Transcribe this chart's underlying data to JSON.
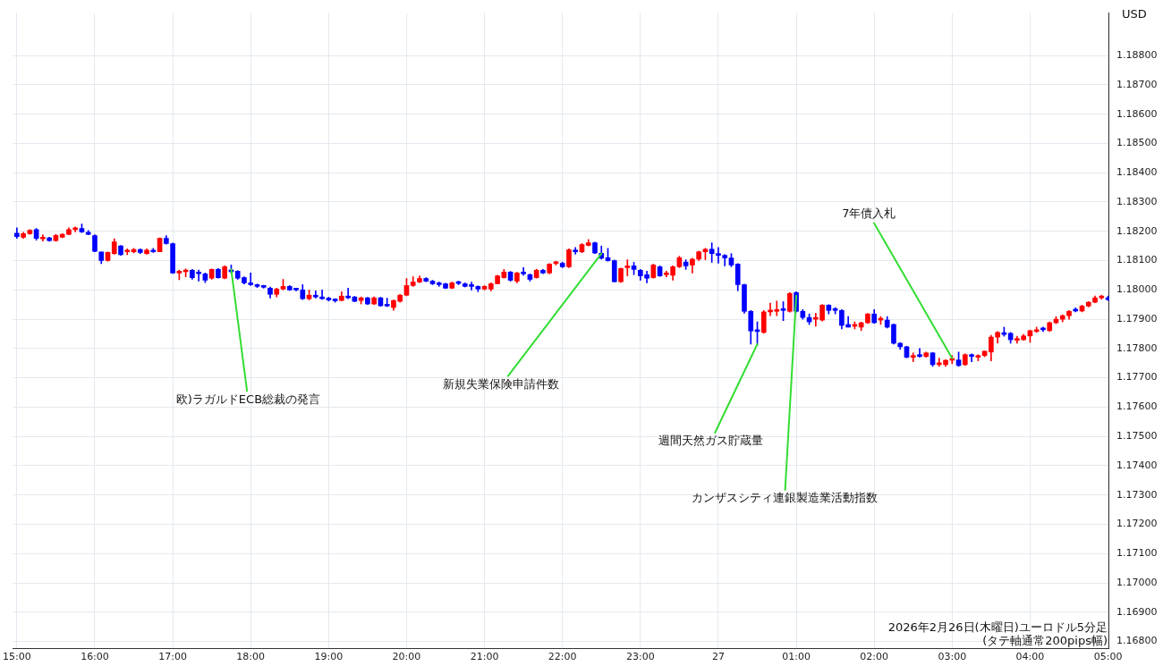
{
  "chart_data": {
    "type": "candlestick",
    "ylabel": "USD",
    "annotations": [
      {
        "text": "欧)ラガルドECB総裁の発言",
        "x": "2026-02-26T17:45",
        "y": 1.1807
      },
      {
        "text": "新規失業保険申請件数",
        "x": "2026-02-26T22:30",
        "y": 1.18124
      },
      {
        "text": "週間天然ガス貯蔵量",
        "x": "2026-02-27T00:30",
        "y": 1.17815
      },
      {
        "text": "カンザスシティ連銀製造業活動指数",
        "x": "2026-02-27T01:00",
        "y": 1.1798
      },
      {
        "text": "7年債入札",
        "x": "2026-02-27T03:00",
        "y": 1.17767
      },
      "2026年2月26日(木曜日)ユーロドル5分足",
      "(タテ軸通常200pips幅)"
    ],
    "x": [
      "2026-02-26T15:00",
      "2026-02-26T15:05",
      "2026-02-26T15:10",
      "2026-02-26T15:15",
      "2026-02-26T15:20",
      "2026-02-26T15:25",
      "2026-02-26T15:30",
      "2026-02-26T15:35",
      "2026-02-26T15:40",
      "2026-02-26T15:45",
      "2026-02-26T15:50",
      "2026-02-26T15:55",
      "2026-02-26T16:00",
      "2026-02-26T16:05",
      "2026-02-26T16:10",
      "2026-02-26T16:15",
      "2026-02-26T16:20",
      "2026-02-26T16:25",
      "2026-02-26T16:30",
      "2026-02-26T16:35",
      "2026-02-26T16:40",
      "2026-02-26T16:45",
      "2026-02-26T16:50",
      "2026-02-26T16:55",
      "2026-02-26T17:00",
      "2026-02-26T17:05",
      "2026-02-26T17:10",
      "2026-02-26T17:15",
      "2026-02-26T17:20",
      "2026-02-26T17:25",
      "2026-02-26T17:30",
      "2026-02-26T17:35",
      "2026-02-26T17:40",
      "2026-02-26T17:45",
      "2026-02-26T17:50",
      "2026-02-26T17:55",
      "2026-02-26T18:00",
      "2026-02-26T18:05",
      "2026-02-26T18:10",
      "2026-02-26T18:15",
      "2026-02-26T18:20",
      "2026-02-26T18:25",
      "2026-02-26T18:30",
      "2026-02-26T18:35",
      "2026-02-26T18:40",
      "2026-02-26T18:45",
      "2026-02-26T18:50",
      "2026-02-26T18:55",
      "2026-02-26T19:00",
      "2026-02-26T19:05",
      "2026-02-26T19:10",
      "2026-02-26T19:15",
      "2026-02-26T19:20",
      "2026-02-26T19:25",
      "2026-02-26T19:30",
      "2026-02-26T19:35",
      "2026-02-26T19:40",
      "2026-02-26T19:45",
      "2026-02-26T19:50",
      "2026-02-26T19:55",
      "2026-02-26T20:00",
      "2026-02-26T20:05",
      "2026-02-26T20:10",
      "2026-02-26T20:15",
      "2026-02-26T20:20",
      "2026-02-26T20:25",
      "2026-02-26T20:30",
      "2026-02-26T20:35",
      "2026-02-26T20:40",
      "2026-02-26T20:45",
      "2026-02-26T20:50",
      "2026-02-26T20:55",
      "2026-02-26T21:00",
      "2026-02-26T21:05",
      "2026-02-26T21:10",
      "2026-02-26T21:15",
      "2026-02-26T21:20",
      "2026-02-26T21:25",
      "2026-02-26T21:30",
      "2026-02-26T21:35",
      "2026-02-26T21:40",
      "2026-02-26T21:45",
      "2026-02-26T21:50",
      "2026-02-26T21:55",
      "2026-02-26T22:00",
      "2026-02-26T22:05",
      "2026-02-26T22:10",
      "2026-02-26T22:15",
      "2026-02-26T22:20",
      "2026-02-26T22:25",
      "2026-02-26T22:30",
      "2026-02-26T22:35",
      "2026-02-26T22:40",
      "2026-02-26T22:45",
      "2026-02-26T22:50",
      "2026-02-26T22:55",
      "2026-02-26T23:00",
      "2026-02-26T23:05",
      "2026-02-26T23:10",
      "2026-02-26T23:15",
      "2026-02-26T23:20",
      "2026-02-26T23:25",
      "2026-02-26T23:30",
      "2026-02-26T23:35",
      "2026-02-26T23:40",
      "2026-02-26T23:45",
      "2026-02-26T23:50",
      "2026-02-26T23:55",
      "2026-02-27T00:00",
      "2026-02-27T00:05",
      "2026-02-27T00:10",
      "2026-02-27T00:15",
      "2026-02-27T00:20",
      "2026-02-27T00:25",
      "2026-02-27T00:30",
      "2026-02-27T00:35",
      "2026-02-27T00:40",
      "2026-02-27T00:45",
      "2026-02-27T00:50",
      "2026-02-27T00:55",
      "2026-02-27T01:00",
      "2026-02-27T01:05",
      "2026-02-27T01:10",
      "2026-02-27T01:15",
      "2026-02-27T01:20",
      "2026-02-27T01:25",
      "2026-02-27T01:30",
      "2026-02-27T01:35",
      "2026-02-27T01:40",
      "2026-02-27T01:45",
      "2026-02-27T01:50",
      "2026-02-27T01:55",
      "2026-02-27T02:00",
      "2026-02-27T02:05",
      "2026-02-27T02:10",
      "2026-02-27T02:15",
      "2026-02-27T02:20",
      "2026-02-27T02:25",
      "2026-02-27T02:30",
      "2026-02-27T02:35",
      "2026-02-27T02:40",
      "2026-02-27T02:45",
      "2026-02-27T02:50",
      "2026-02-27T02:55",
      "2026-02-27T03:00",
      "2026-02-27T03:05",
      "2026-02-27T03:10",
      "2026-02-27T03:15",
      "2026-02-27T03:20",
      "2026-02-27T03:25",
      "2026-02-27T03:30",
      "2026-02-27T03:35",
      "2026-02-27T03:40",
      "2026-02-27T03:45",
      "2026-02-27T03:50",
      "2026-02-27T03:55",
      "2026-02-27T04:00",
      "2026-02-27T04:05",
      "2026-02-27T04:10",
      "2026-02-27T04:15",
      "2026-02-27T04:20",
      "2026-02-27T04:25",
      "2026-02-27T04:30",
      "2026-02-27T04:35",
      "2026-02-27T04:40",
      "2026-02-27T04:45",
      "2026-02-27T04:50",
      "2026-02-27T04:55",
      "2026-02-27T05:00"
    ],
    "ohlc": [
      [
        1.18194,
        1.18212,
        1.18176,
        1.18182
      ],
      [
        1.1818,
        1.18197,
        1.18176,
        1.18192
      ],
      [
        1.18192,
        1.18206,
        1.1819,
        1.18204
      ],
      [
        1.18206,
        1.1821,
        1.1817,
        1.18176
      ],
      [
        1.18174,
        1.18188,
        1.18167,
        1.18178
      ],
      [
        1.18178,
        1.1818,
        1.18166,
        1.18168
      ],
      [
        1.18168,
        1.1819,
        1.18166,
        1.18186
      ],
      [
        1.1818,
        1.18192,
        1.18178,
        1.1819
      ],
      [
        1.1819,
        1.18212,
        1.18188,
        1.18206
      ],
      [
        1.18206,
        1.18215,
        1.18198,
        1.18208
      ],
      [
        1.1821,
        1.18225,
        1.18196,
        1.18198
      ],
      [
        1.18197,
        1.18203,
        1.18188,
        1.1819
      ],
      [
        1.18185,
        1.18188,
        1.1813,
        1.18132
      ],
      [
        1.1813,
        1.1813,
        1.1809,
        1.181
      ],
      [
        1.181,
        1.1813,
        1.18098,
        1.18128
      ],
      [
        1.18124,
        1.18175,
        1.18122,
        1.18164
      ],
      [
        1.1815,
        1.18152,
        1.18118,
        1.1812
      ],
      [
        1.1813,
        1.1814,
        1.1812,
        1.18136
      ],
      [
        1.1813,
        1.18142,
        1.18126,
        1.18138
      ],
      [
        1.18138,
        1.1814,
        1.18124,
        1.18128
      ],
      [
        1.18124,
        1.1814,
        1.18122,
        1.18136
      ],
      [
        1.18136,
        1.18142,
        1.18128,
        1.1813
      ],
      [
        1.1813,
        1.18178,
        1.1813,
        1.18176
      ],
      [
        1.18176,
        1.18185,
        1.18156,
        1.18158
      ],
      [
        1.18158,
        1.1816,
        1.18056,
        1.18058
      ],
      [
        1.18058,
        1.18068,
        1.18035,
        1.18064
      ],
      [
        1.18062,
        1.18072,
        1.18045,
        1.18066
      ],
      [
        1.18067,
        1.1807,
        1.18036,
        1.18042
      ],
      [
        1.18058,
        1.18068,
        1.1803,
        1.18055
      ],
      [
        1.18055,
        1.18058,
        1.18025,
        1.18033
      ],
      [
        1.1804,
        1.18072,
        1.18036,
        1.1807
      ],
      [
        1.1807,
        1.18073,
        1.1804,
        1.18042
      ],
      [
        1.1804,
        1.18082,
        1.18038,
        1.18079
      ],
      [
        1.18066,
        1.18085,
        1.18058,
        1.18062
      ],
      [
        1.18064,
        1.18066,
        1.18036,
        1.1804
      ],
      [
        1.18042,
        1.18045,
        1.1802,
        1.18024
      ],
      [
        1.18024,
        1.18058,
        1.18015,
        1.18018
      ],
      [
        1.18014,
        1.1802,
        1.18008,
        1.18012
      ],
      [
        1.18012,
        1.18016,
        1.18006,
        1.18009
      ],
      [
        1.18006,
        1.1801,
        1.17972,
        1.17985
      ],
      [
        1.17985,
        1.18006,
        1.17976,
        1.18003
      ],
      [
        1.18003,
        1.18036,
        1.18,
        1.18012
      ],
      [
        1.18012,
        1.18015,
        1.17998,
        1.18
      ],
      [
        1.18003,
        1.18003,
        1.17997,
        1.18
      ],
      [
        1.18,
        1.18018,
        1.17967,
        1.1797
      ],
      [
        1.1797,
        1.18,
        1.17966,
        1.17982
      ],
      [
        1.1798,
        1.17997,
        1.17972,
        1.17976
      ],
      [
        1.17976,
        1.18,
        1.17968,
        1.1797
      ],
      [
        1.17968,
        1.17975,
        1.17962,
        1.17966
      ],
      [
        1.17965,
        1.1797,
        1.17958,
        1.17963
      ],
      [
        1.17964,
        1.17994,
        1.17962,
        1.17979
      ],
      [
        1.17979,
        1.18006,
        1.1797,
        1.17973
      ],
      [
        1.17976,
        1.17978,
        1.1796,
        1.17961
      ],
      [
        1.17964,
        1.17976,
        1.17952,
        1.17973
      ],
      [
        1.17973,
        1.17975,
        1.1795,
        1.17952
      ],
      [
        1.17952,
        1.17976,
        1.1795,
        1.17973
      ],
      [
        1.17973,
        1.17975,
        1.17944,
        1.17946
      ],
      [
        1.17946,
        1.17972,
        1.17943,
        1.17945
      ],
      [
        1.1794,
        1.17966,
        1.1793,
        1.17964
      ],
      [
        1.17961,
        1.17985,
        1.17958,
        1.17982
      ],
      [
        1.17982,
        1.18039,
        1.1798,
        1.18015
      ],
      [
        1.18015,
        1.18045,
        1.18012,
        1.18027
      ],
      [
        1.18027,
        1.18048,
        1.18025,
        1.18039
      ],
      [
        1.18039,
        1.18042,
        1.18028,
        1.1803
      ],
      [
        1.1803,
        1.18033,
        1.18018,
        1.18021
      ],
      [
        1.18021,
        1.18027,
        1.18012,
        1.18018
      ],
      [
        1.18021,
        1.18023,
        1.18004,
        1.18006
      ],
      [
        1.18006,
        1.18027,
        1.18004,
        1.18024
      ],
      [
        1.18025,
        1.1803,
        1.18018,
        1.18022
      ],
      [
        1.18021,
        1.18024,
        1.1801,
        1.18012
      ],
      [
        1.18014,
        1.18027,
        1.18,
        1.18012
      ],
      [
        1.18012,
        1.18014,
        1.17994,
        1.18003
      ],
      [
        1.18003,
        1.18015,
        1.18,
        1.18012
      ],
      [
        1.18003,
        1.18024,
        1.17997,
        1.18021
      ],
      [
        1.18021,
        1.1805,
        1.1802,
        1.18048
      ],
      [
        1.18042,
        1.1807,
        1.1804,
        1.18061
      ],
      [
        1.18061,
        1.18063,
        1.1803,
        1.18033
      ],
      [
        1.1803,
        1.1806,
        1.18024,
        1.18058
      ],
      [
        1.18058,
        1.18076,
        1.1805,
        1.18055
      ],
      [
        1.18052,
        1.18055,
        1.1803,
        1.18036
      ],
      [
        1.18042,
        1.18071,
        1.1804,
        1.18067
      ],
      [
        1.18067,
        1.1807,
        1.18055,
        1.18058
      ],
      [
        1.18058,
        1.1809,
        1.18055,
        1.18088
      ],
      [
        1.1809,
        1.18098,
        1.18085,
        1.18094
      ],
      [
        1.18091,
        1.18095,
        1.18076,
        1.18079
      ],
      [
        1.18079,
        1.1814,
        1.18076,
        1.18137
      ],
      [
        1.18136,
        1.18145,
        1.18122,
        1.1813
      ],
      [
        1.1813,
        1.18158,
        1.18127,
        1.18155
      ],
      [
        1.18152,
        1.18172,
        1.1815,
        1.18161
      ],
      [
        1.18161,
        1.18163,
        1.18124,
        1.18126
      ],
      [
        1.18125,
        1.1815,
        1.18105,
        1.18108
      ],
      [
        1.1811,
        1.18142,
        1.18098,
        1.181
      ],
      [
        1.181,
        1.18102,
        1.18027,
        1.18028
      ],
      [
        1.18028,
        1.18075,
        1.18026,
        1.18073
      ],
      [
        1.18076,
        1.18103,
        1.18048,
        1.18082
      ],
      [
        1.18082,
        1.18094,
        1.18052,
        1.1807
      ],
      [
        1.18067,
        1.1807,
        1.18033,
        1.18048
      ],
      [
        1.18052,
        1.18064,
        1.18024,
        1.1804
      ],
      [
        1.18042,
        1.18088,
        1.1804,
        1.18085
      ],
      [
        1.18079,
        1.18082,
        1.18046,
        1.18048
      ],
      [
        1.18052,
        1.18064,
        1.18045,
        1.18057
      ],
      [
        1.1805,
        1.18082,
        1.18033,
        1.18079
      ],
      [
        1.18079,
        1.18115,
        1.18076,
        1.1811
      ],
      [
        1.18095,
        1.18103,
        1.1807,
        1.18082
      ],
      [
        1.18085,
        1.18108,
        1.18058,
        1.18105
      ],
      [
        1.18105,
        1.18133,
        1.181,
        1.1813
      ],
      [
        1.1813,
        1.18142,
        1.18103,
        1.18139
      ],
      [
        1.18139,
        1.18161,
        1.18094,
        1.18124
      ],
      [
        1.18124,
        1.18145,
        1.18091,
        1.18118
      ],
      [
        1.18118,
        1.18121,
        1.18082,
        1.18109
      ],
      [
        1.18109,
        1.18124,
        1.18079,
        1.18085
      ],
      [
        1.18088,
        1.1809,
        1.17997,
        1.18018
      ],
      [
        1.18018,
        1.1802,
        1.1792,
        1.17927
      ],
      [
        1.17927,
        1.1793,
        1.17815,
        1.1786
      ],
      [
        1.17862,
        1.17891,
        1.17812,
        1.17858
      ],
      [
        1.17855,
        1.1793,
        1.17852,
        1.17925
      ],
      [
        1.17925,
        1.17955,
        1.17912,
        1.1793
      ],
      [
        1.17927,
        1.17962,
        1.17912,
        1.17933
      ],
      [
        1.17933,
        1.1796,
        1.17895,
        1.1793
      ],
      [
        1.17927,
        1.17991,
        1.17924,
        1.17988
      ],
      [
        1.17991,
        1.17994,
        1.17924,
        1.17927
      ],
      [
        1.17927,
        1.17933,
        1.179,
        1.17906
      ],
      [
        1.17906,
        1.17918,
        1.17882,
        1.17891
      ],
      [
        1.179,
        1.17921,
        1.17876,
        1.17906
      ],
      [
        1.17897,
        1.1795,
        1.17894,
        1.17948
      ],
      [
        1.17948,
        1.1795,
        1.17918,
        1.1793
      ],
      [
        1.17933,
        1.1794,
        1.17918,
        1.1793
      ],
      [
        1.1793,
        1.17933,
        1.17867,
        1.17879
      ],
      [
        1.17882,
        1.17909,
        1.17873,
        1.17873
      ],
      [
        1.17876,
        1.17891,
        1.17867,
        1.17881
      ],
      [
        1.17873,
        1.1789,
        1.17861,
        1.17888
      ],
      [
        1.17888,
        1.1792,
        1.17885,
        1.17918
      ],
      [
        1.17918,
        1.17933,
        1.17886,
        1.17888
      ],
      [
        1.17897,
        1.17909,
        1.17882,
        1.17903
      ],
      [
        1.17897,
        1.17909,
        1.1787,
        1.17873
      ],
      [
        1.17882,
        1.17884,
        1.17815,
        1.17818
      ],
      [
        1.17818,
        1.1782,
        1.17797,
        1.17806
      ],
      [
        1.17806,
        1.17808,
        1.17768,
        1.1777
      ],
      [
        1.1777,
        1.17785,
        1.17755,
        1.17776
      ],
      [
        1.17776,
        1.178,
        1.1777,
        1.17773
      ],
      [
        1.17773,
        1.17788,
        1.1777,
        1.17785
      ],
      [
        1.17785,
        1.17787,
        1.17739,
        1.17745
      ],
      [
        1.17745,
        1.17767,
        1.17739,
        1.1775
      ],
      [
        1.17745,
        1.17762,
        1.17739,
        1.1776
      ],
      [
        1.1776,
        1.17776,
        1.17748,
        1.17764
      ],
      [
        1.17761,
        1.17788,
        1.17739,
        1.17742
      ],
      [
        1.17745,
        1.17782,
        1.17742,
        1.17779
      ],
      [
        1.17776,
        1.17782,
        1.17755,
        1.17773
      ],
      [
        1.1777,
        1.17779,
        1.17758,
        1.17773
      ],
      [
        1.17776,
        1.17791,
        1.17772,
        1.17791
      ],
      [
        1.17788,
        1.17845,
        1.17758,
        1.17839
      ],
      [
        1.17839,
        1.17858,
        1.17818,
        1.17855
      ],
      [
        1.1785,
        1.17873,
        1.17842,
        1.17848
      ],
      [
        1.17852,
        1.17855,
        1.17818,
        1.1783
      ],
      [
        1.17828,
        1.17842,
        1.17818,
        1.17832
      ],
      [
        1.1783,
        1.17848,
        1.17828,
        1.17843
      ],
      [
        1.17843,
        1.17863,
        1.17821,
        1.17861
      ],
      [
        1.17858,
        1.17873,
        1.17855,
        1.17864
      ],
      [
        1.17866,
        1.17873,
        1.17858,
        1.17864
      ],
      [
        1.17861,
        1.17891,
        1.17858,
        1.17888
      ],
      [
        1.17888,
        1.17909,
        1.17885,
        1.179
      ],
      [
        1.179,
        1.17915,
        1.17891,
        1.17912
      ],
      [
        1.17912,
        1.1793,
        1.179,
        1.17927
      ],
      [
        1.17933,
        1.17939,
        1.17925,
        1.17928
      ],
      [
        1.17928,
        1.17948,
        1.17925,
        1.17945
      ],
      [
        1.17945,
        1.1796,
        1.17942,
        1.17958
      ],
      [
        1.17958,
        1.17979,
        1.17956,
        1.17973
      ],
      [
        1.17973,
        1.17982,
        1.17968,
        1.17976
      ],
      [
        1.17973,
        1.17979,
        1.17964,
        1.17967
      ]
    ],
    "colors": [
      "#0000ff",
      "#ff0000",
      "#ff0000",
      "#0000ff",
      "#ff0000",
      "#0000ff",
      "#ff0000",
      "#ff0000",
      "#ff0000",
      "#ff0000",
      "#0000ff",
      "#0000ff",
      "#0000ff",
      "#0000ff",
      "#ff0000",
      "#ff0000",
      "#0000ff",
      "#ff0000",
      "#ff0000",
      "#0000ff",
      "#ff0000",
      "#0000ff",
      "#ff0000",
      "#0000ff",
      "#0000ff",
      "#ff0000",
      "#ff0000",
      "#0000ff",
      "#0000ff",
      "#0000ff",
      "#ff0000",
      "#0000ff",
      "#ff0000",
      "#0000ff",
      "#0000ff",
      "#0000ff",
      "#0000ff",
      "#0000ff",
      "#0000ff",
      "#0000ff",
      "#ff0000",
      "#ff0000",
      "#0000ff",
      "#0000ff",
      "#0000ff",
      "#ff0000",
      "#0000ff",
      "#0000ff",
      "#0000ff",
      "#0000ff",
      "#ff0000",
      "#0000ff",
      "#0000ff",
      "#ff0000",
      "#0000ff",
      "#ff0000",
      "#0000ff",
      "#0000ff",
      "#ff0000",
      "#ff0000",
      "#ff0000",
      "#ff0000",
      "#ff0000",
      "#0000ff",
      "#0000ff",
      "#0000ff",
      "#0000ff",
      "#ff0000",
      "#0000ff",
      "#0000ff",
      "#0000ff",
      "#0000ff",
      "#ff0000",
      "#ff0000",
      "#ff0000",
      "#ff0000",
      "#0000ff",
      "#ff0000",
      "#0000ff",
      "#0000ff",
      "#ff0000",
      "#0000ff",
      "#ff0000",
      "#ff0000",
      "#0000ff",
      "#ff0000",
      "#0000ff",
      "#ff0000",
      "#ff0000",
      "#0000ff",
      "#0000ff",
      "#0000ff",
      "#0000ff",
      "#ff0000",
      "#ff0000",
      "#0000ff",
      "#0000ff",
      "#0000ff",
      "#ff0000",
      "#0000ff",
      "#ff0000",
      "#ff0000",
      "#ff0000",
      "#0000ff",
      "#ff0000",
      "#ff0000",
      "#ff0000",
      "#0000ff",
      "#0000ff",
      "#0000ff",
      "#0000ff",
      "#0000ff",
      "#0000ff",
      "#0000ff",
      "#0000ff",
      "#ff0000",
      "#ff0000",
      "#ff0000",
      "#0000ff",
      "#ff0000",
      "#0000ff",
      "#0000ff",
      "#0000ff",
      "#ff0000",
      "#ff0000",
      "#0000ff",
      "#0000ff",
      "#0000ff",
      "#0000ff",
      "#ff0000",
      "#ff0000",
      "#ff0000",
      "#0000ff",
      "#ff0000",
      "#0000ff",
      "#0000ff",
      "#0000ff",
      "#0000ff",
      "#ff0000",
      "#0000ff",
      "#ff0000",
      "#0000ff",
      "#ff0000",
      "#ff0000",
      "#ff0000",
      "#0000ff",
      "#ff0000",
      "#0000ff",
      "#ff0000",
      "#ff0000",
      "#ff0000",
      "#ff0000",
      "#0000ff",
      "#0000ff",
      "#ff0000",
      "#ff0000",
      "#ff0000",
      "#ff0000",
      "#0000ff",
      "#ff0000",
      "#ff0000",
      "#ff0000",
      "#ff0000",
      "#0000ff",
      "#ff0000",
      "#ff0000",
      "#ff0000",
      "#ff0000",
      "#0000ff"
    ],
    "xlim": [
      "2026-02-26T14:57",
      "2026-02-27T05:01"
    ],
    "xticks": [
      {
        "value": "2026-02-26T15:00",
        "label": "15:00"
      },
      {
        "value": "2026-02-26T16:00",
        "label": "16:00"
      },
      {
        "value": "2026-02-26T17:00",
        "label": "17:00"
      },
      {
        "value": "2026-02-26T18:00",
        "label": "18:00"
      },
      {
        "value": "2026-02-26T19:00",
        "label": "19:00"
      },
      {
        "value": "2026-02-26T20:00",
        "label": "20:00"
      },
      {
        "value": "2026-02-26T21:00",
        "label": "21:00"
      },
      {
        "value": "2026-02-26T22:00",
        "label": "22:00"
      },
      {
        "value": "2026-02-26T23:00",
        "label": "23:00"
      },
      {
        "value": "2026-02-27T00:00",
        "label": "27"
      },
      {
        "value": "2026-02-27T01:00",
        "label": "01:00"
      },
      {
        "value": "2026-02-27T02:00",
        "label": "02:00"
      },
      {
        "value": "2026-02-27T03:00",
        "label": "03:00"
      },
      {
        "value": "2026-02-27T04:00",
        "label": "04:00"
      },
      {
        "value": "2026-02-27T05:00",
        "label": "05:00"
      }
    ],
    "ylim": [
      1.16775,
      1.18945
    ],
    "yticks": [
      {
        "value": 1.168,
        "label": "1.16800"
      },
      {
        "value": 1.169,
        "label": "1.16900"
      },
      {
        "value": 1.17,
        "label": "1.17000"
      },
      {
        "value": 1.171,
        "label": "1.17100"
      },
      {
        "value": 1.172,
        "label": "1.17200"
      },
      {
        "value": 1.173,
        "label": "1.17300"
      },
      {
        "value": 1.174,
        "label": "1.17400"
      },
      {
        "value": 1.175,
        "label": "1.17500"
      },
      {
        "value": 1.176,
        "label": "1.17600"
      },
      {
        "value": 1.177,
        "label": "1.17700"
      },
      {
        "value": 1.178,
        "label": "1.17800"
      },
      {
        "value": 1.179,
        "label": "1.17900"
      },
      {
        "value": 1.18,
        "label": "1.18000"
      },
      {
        "value": 1.181,
        "label": "1.18100"
      },
      {
        "value": 1.182,
        "label": "1.18200"
      },
      {
        "value": 1.183,
        "label": "1.18300"
      },
      {
        "value": 1.184,
        "label": "1.18400"
      },
      {
        "value": 1.185,
        "label": "1.18500"
      },
      {
        "value": 1.186,
        "label": "1.18600"
      },
      {
        "value": 1.187,
        "label": "1.18700"
      },
      {
        "value": 1.188,
        "label": "1.18800"
      }
    ],
    "grid": true,
    "legend": false
  }
}
